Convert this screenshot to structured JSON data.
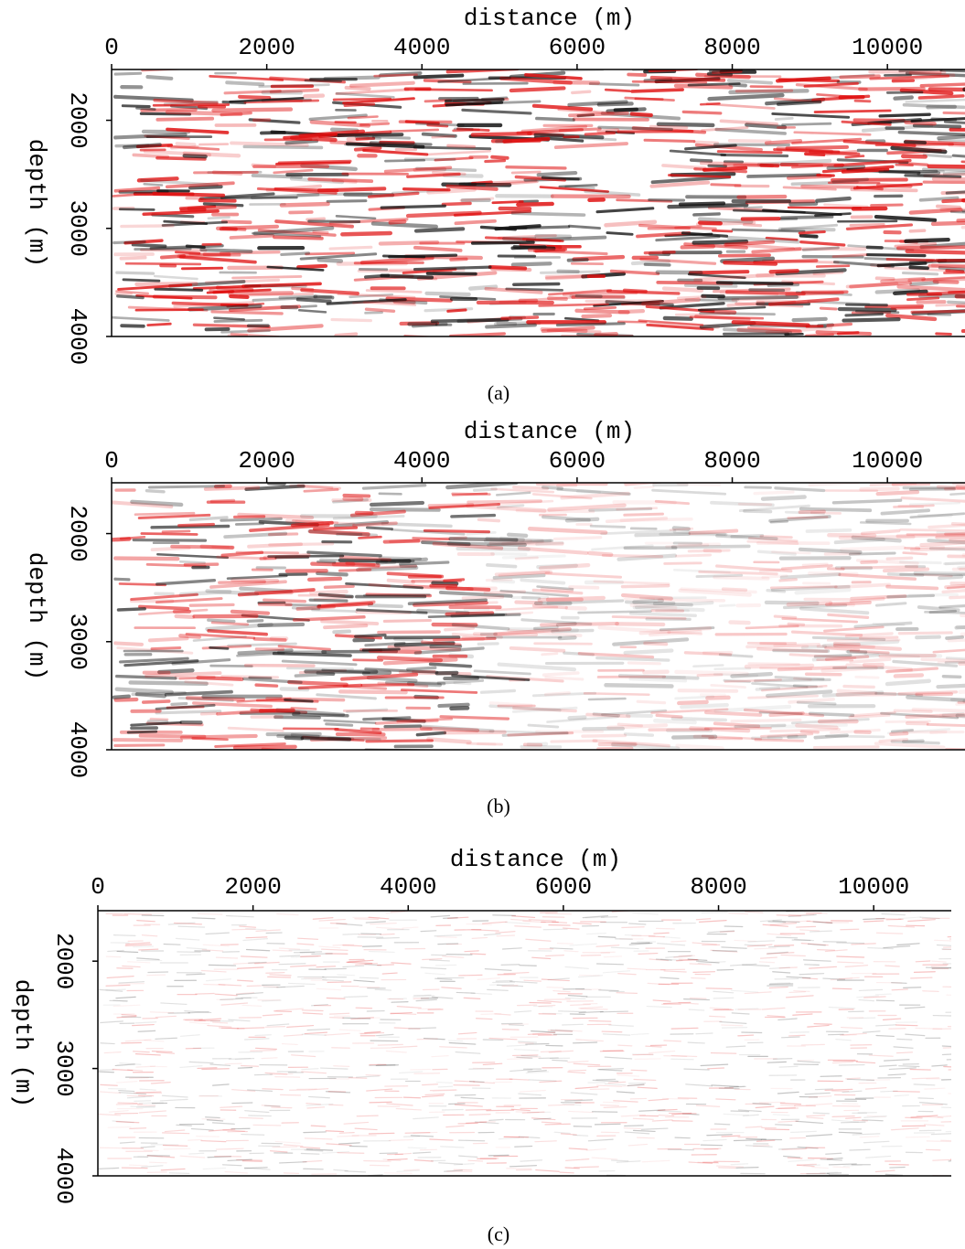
{
  "chart_data": [
    {
      "type": "seismic",
      "xlabel": "distance (m)",
      "ylabel": "depth (m)",
      "xlim": [
        0,
        11000
      ],
      "ylim": [
        1530,
        4000
      ],
      "xticks": [
        0,
        2000,
        4000,
        6000,
        8000,
        10000
      ],
      "yticks": [
        2000,
        3000,
        4000
      ],
      "caption": "(a)"
    },
    {
      "type": "seismic",
      "xlabel": "distance (m)",
      "ylabel": "depth (m)",
      "xlim": [
        0,
        11000
      ],
      "ylim": [
        1530,
        4000
      ],
      "xticks": [
        0,
        2000,
        4000,
        6000,
        8000,
        10000
      ],
      "yticks": [
        2000,
        3000,
        4000
      ],
      "caption": "(b)"
    },
    {
      "type": "seismic",
      "xlabel": "distance (m)",
      "ylabel": "depth (m)",
      "xlim": [
        0,
        11000
      ],
      "ylim": [
        1530,
        4000
      ],
      "xticks": [
        0,
        2000,
        4000,
        6000,
        8000,
        10000
      ],
      "yticks": [
        2000,
        3000,
        4000
      ],
      "caption": "(c)"
    }
  ]
}
